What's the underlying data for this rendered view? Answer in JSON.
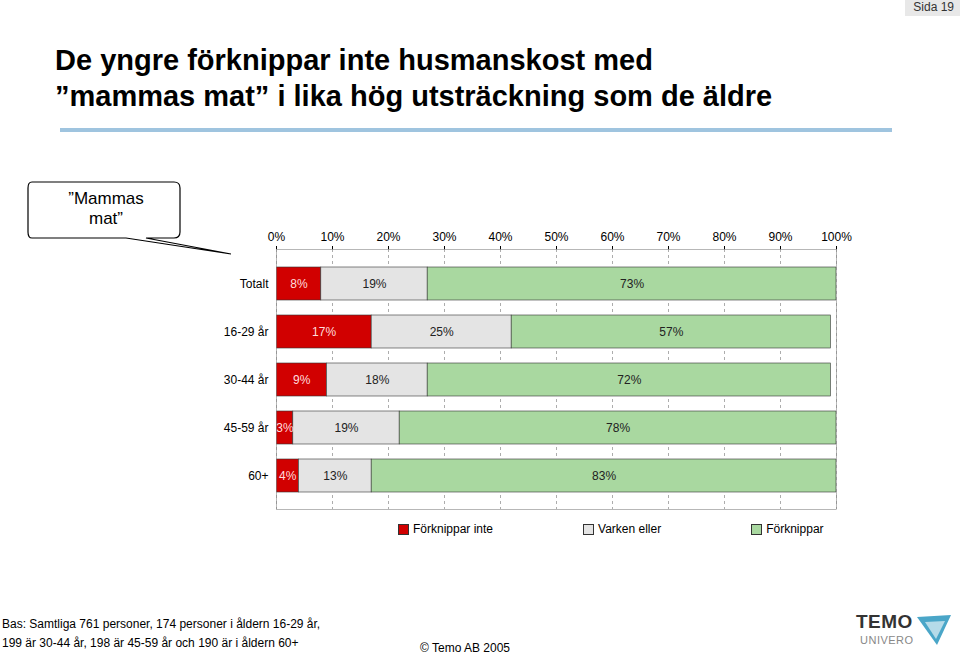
{
  "chart_data": {
    "type": "bar",
    "orientation": "horizontal",
    "stacked": true,
    "title": "De yngre förknippar inte husmanskost med\n”mammas mat” i lika hög utsträckning som de äldre",
    "annotations": [
      "”Mammas mat”"
    ],
    "categories": [
      "Totalt",
      "16-29 år",
      "30-44 år",
      "45-59 år",
      "60+"
    ],
    "series": [
      {
        "name": "Förknippar inte",
        "color": "#d10000",
        "values": [
          8,
          17,
          9,
          3,
          4
        ],
        "value_labels": [
          "8%",
          "17%",
          "9%",
          "3%",
          "4%"
        ]
      },
      {
        "name": "Varken eller",
        "color": "#e4e4e4",
        "values": [
          19,
          25,
          18,
          19,
          13
        ],
        "value_labels": [
          "19%",
          "25%",
          "18%",
          "19%",
          "13%"
        ]
      },
      {
        "name": "Förknippar",
        "color": "#a9d8a0",
        "values": [
          73,
          57,
          72,
          78,
          83
        ],
        "value_labels": [
          "73%",
          "57%",
          "72%",
          "78%",
          "83%"
        ]
      }
    ],
    "xlim": [
      0,
      100
    ],
    "xticks": [
      {
        "value": 0,
        "label": "0%"
      },
      {
        "value": 10,
        "label": "10%"
      },
      {
        "value": 20,
        "label": "20%"
      },
      {
        "value": 30,
        "label": "30%"
      },
      {
        "value": 40,
        "label": "40%"
      },
      {
        "value": 50,
        "label": "50%"
      },
      {
        "value": 60,
        "label": "60%"
      },
      {
        "value": 70,
        "label": "70%"
      },
      {
        "value": 80,
        "label": "80%"
      },
      {
        "value": 90,
        "label": "90%"
      },
      {
        "value": 100,
        "label": "100%"
      }
    ],
    "grid": true,
    "data_labels": true,
    "legend": "bottom",
    "caption": "Bas: Samtliga 761 personer, 174 personer i åldern 16-29 år,\n199 är 30-44 år, 198 är 45-59 år och 190 är i åldern 60+",
    "source": "© Temo AB 2005",
    "page": "Sida 19",
    "logo": [
      "TEMO",
      "UNIVERO"
    ]
  }
}
